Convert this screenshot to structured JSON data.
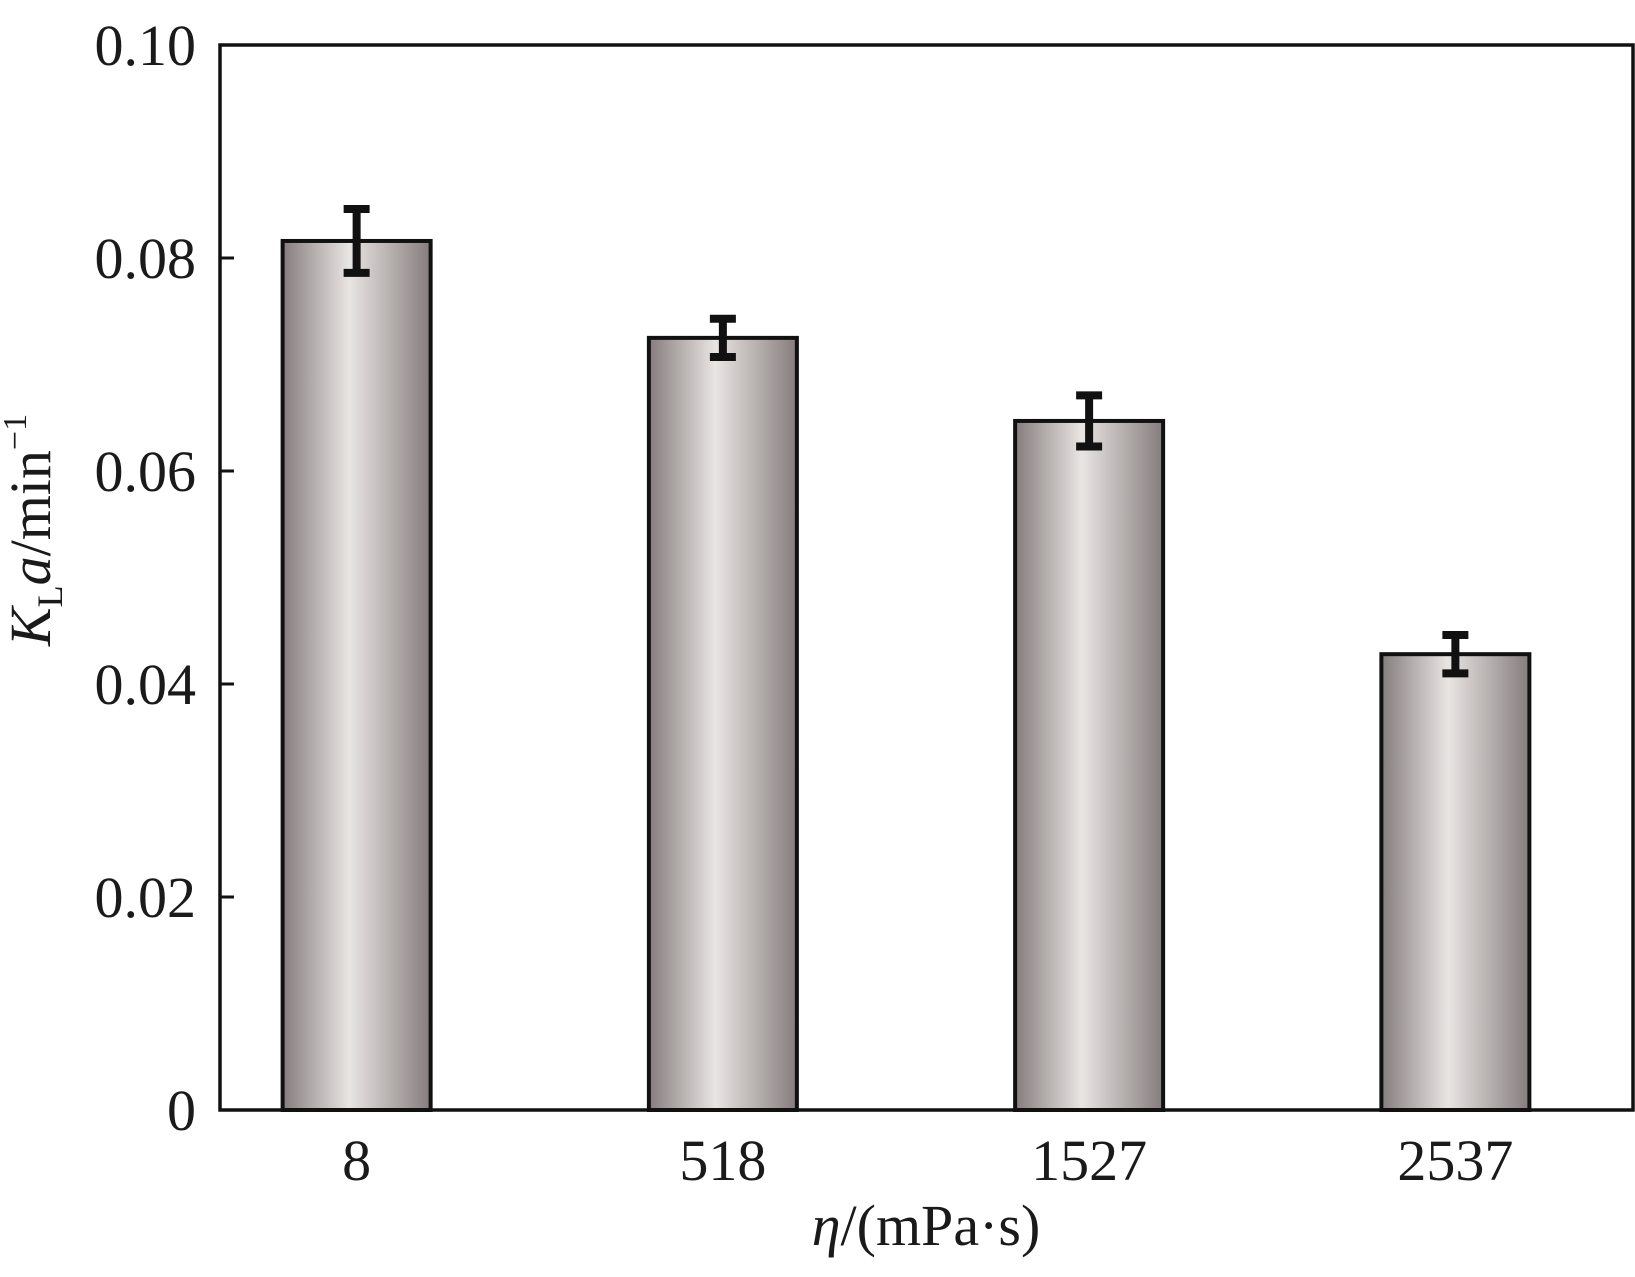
{
  "chart_data": {
    "type": "bar",
    "title": "",
    "categories": [
      "8",
      "518",
      "1527",
      "2537"
    ],
    "values": [
      0.0816,
      0.0725,
      0.0647,
      0.0428
    ],
    "errors": [
      0.003,
      0.0018,
      0.0024,
      0.0018
    ],
    "ylim": [
      0,
      0.1
    ],
    "yticks": [
      "0",
      "0.02",
      "0.04",
      "0.06",
      "0.08",
      "0.10"
    ],
    "ytick_values": [
      0,
      0.02,
      0.04,
      0.06,
      0.08,
      0.1
    ],
    "xlabel": {
      "symbol": "η",
      "rest": "/(mPa·s)"
    },
    "ylabel": {
      "main": "K",
      "subscript": "L",
      "italic_part": "a",
      "unit": "/min",
      "superscript": "−1"
    },
    "grid": false,
    "colors": {
      "bar_edge": "#e9e5e3",
      "bar_mid": "#a79f9f",
      "bar_dark": "#857d7d",
      "outline": "#111111"
    }
  }
}
